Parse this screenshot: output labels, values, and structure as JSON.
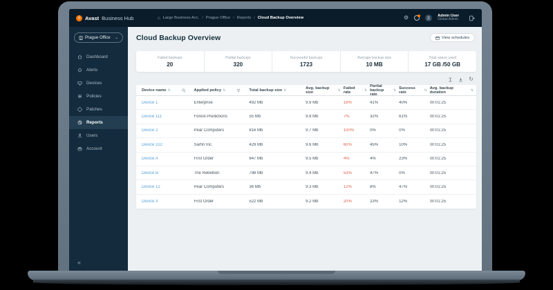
{
  "topbar": {
    "brand_bold": "Avast",
    "brand_rest": "Business Hub",
    "breadcrumb": {
      "item1": "Large Business Acc.",
      "item2": "Prague Office",
      "item3": "Reports",
      "current": "Cloud Backup Overview",
      "separator": "/"
    },
    "user": {
      "name": "Admin User",
      "role": "Global Admin"
    }
  },
  "sidebar": {
    "site_selector": "Prague Office",
    "collapse_glyph": "«",
    "items": [
      {
        "label": "Dashboard",
        "icon": "home",
        "active": false
      },
      {
        "label": "Alerts",
        "icon": "bell",
        "active": false
      },
      {
        "label": "Devices",
        "icon": "monitor",
        "active": false
      },
      {
        "label": "Policies",
        "icon": "sliders",
        "active": false
      },
      {
        "label": "Patches",
        "icon": "patch",
        "active": false
      },
      {
        "label": "Reports",
        "icon": "pie",
        "active": true
      },
      {
        "label": "Users",
        "icon": "person",
        "active": false
      },
      {
        "label": "Account",
        "icon": "briefcase",
        "active": false
      }
    ]
  },
  "page": {
    "title": "Cloud Backup Overview",
    "view_schedules_label": "View schedules"
  },
  "stats": [
    {
      "label": "Failed backups",
      "value": "20"
    },
    {
      "label": "Partial backups",
      "value": "320"
    },
    {
      "label": "Successful backups",
      "value": "1723"
    },
    {
      "label": "Average backup size",
      "value": "10 MB"
    },
    {
      "label": "Total space used",
      "value": "17 GB /50 GB"
    }
  ],
  "toolbar_icons": {
    "columns": "columns",
    "download": "download",
    "refresh": "↻"
  },
  "table": {
    "sort_glyph": "⇅",
    "columns": {
      "device": "Device name",
      "policy": "Applied policy",
      "total": "Total backup size",
      "avg": "Avg. backup size",
      "failed": "Failed rate",
      "partial": "Partial backup rate",
      "success": "Success rate",
      "duration": "Avg. backup duration"
    },
    "rows": [
      {
        "device": "Device 1",
        "policy": "Enterprise",
        "total": "492 Mb",
        "avg": "9.9 Mb",
        "failed": "19%",
        "partial": "41%",
        "success": "40%",
        "duration": "00:01:25"
      },
      {
        "device": "Device 111",
        "policy": "Forest Predictions",
        "total": "55 Mb",
        "avg": "9.8 Mb",
        "failed": "7%",
        "partial": "32%",
        "success": "61%",
        "duration": "00:01:25"
      },
      {
        "device": "Device 2",
        "policy": "Pear Computers",
        "total": "816 Mb",
        "avg": "9.7 Mb",
        "failed": "100%",
        "partial": "0%",
        "success": "0%",
        "duration": "00:01:25"
      },
      {
        "device": "Device 222",
        "policy": "Sarfin Inc.",
        "total": "429 Mb",
        "avg": "9.6 Mb",
        "failed": "60%",
        "partial": "45%",
        "success": "10%",
        "duration": "00:01:25"
      },
      {
        "device": "Device A",
        "policy": "First Order",
        "total": "647 Mb",
        "avg": "9.5 Mb",
        "failed": "4%",
        "partial": "4%",
        "success": "23%",
        "duration": "00:01:25"
      },
      {
        "device": "Device B",
        "policy": "The Rebellion",
        "total": "798 Mb",
        "avg": "9.4 Mb",
        "failed": "53%",
        "partial": "47%",
        "success": "0%",
        "duration": "00:01:25"
      },
      {
        "device": "Device 12",
        "policy": "Pear Computers",
        "total": "36 Mb",
        "avg": "9.3 Mb",
        "failed": "12%",
        "partial": "8%",
        "success": "47%",
        "duration": "00:01:25"
      },
      {
        "device": "Device 3",
        "policy": "First Order",
        "total": "522 Mb",
        "avg": "9.2 Mb",
        "failed": "20%",
        "partial": "23%",
        "success": "12%",
        "duration": "00:01:25"
      }
    ]
  },
  "colors": {
    "accent_orange": "#ff7800",
    "link_blue": "#58a0d8",
    "failed_red": "#dd6450",
    "dark_navy": "#0a1c2a",
    "sidebar_navy": "#132b3d"
  }
}
